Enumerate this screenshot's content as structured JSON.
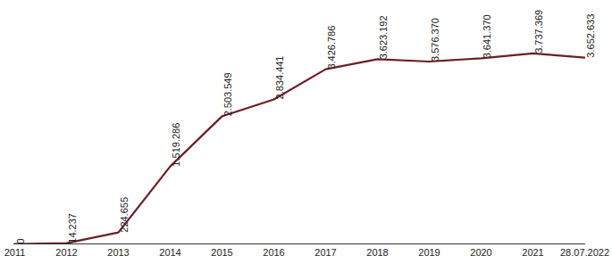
{
  "chart_data": {
    "type": "line",
    "categories": [
      "2011",
      "2012",
      "2013",
      "2014",
      "2015",
      "2016",
      "2017",
      "2018",
      "2019",
      "2020",
      "2021",
      "28.07.2022"
    ],
    "values": [
      0,
      14237,
      224655,
      1519286,
      2503549,
      2834441,
      3426786,
      3623192,
      3576370,
      3641370,
      3737369,
      3652633
    ],
    "value_labels": [
      "0",
      "14.237",
      "224.655",
      "1.519.286",
      "2.503.549",
      "2.834.441",
      "3.426.786",
      "3.623.192",
      "3.576.370",
      "3.641.370",
      "3.737.369",
      "3.652.633"
    ],
    "color": "#6b1f24",
    "ylim": [
      0,
      4600000
    ],
    "data_labels": true,
    "tick_labels": "x",
    "grid": false
  }
}
